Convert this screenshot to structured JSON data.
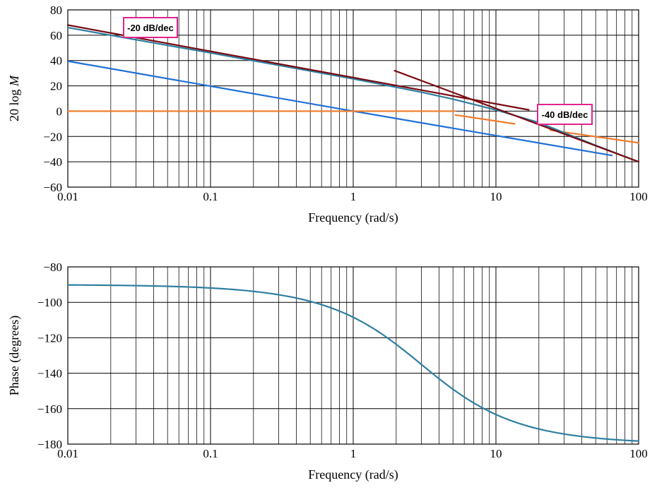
{
  "chart_data": [
    {
      "type": "line",
      "xscale": "log",
      "xlim": [
        0.01,
        100
      ],
      "ylim": [
        -60,
        80
      ],
      "xlabel": "Frequency (rad/s)",
      "ylabel": "20 log M",
      "xticks": [
        0.01,
        0.1,
        1,
        10,
        100
      ],
      "xtick_labels": [
        "0.01",
        "0.1",
        "1",
        "10",
        "100"
      ],
      "yticks": [
        -60,
        -40,
        -20,
        0,
        20,
        40,
        60,
        80
      ],
      "ytick_labels": [
        "−60",
        "−40",
        "−20",
        "0",
        "20",
        "40",
        "60",
        "80"
      ],
      "grid": true,
      "series": [
        {
          "color": "#1f6fd6",
          "x": [
            0.01,
            1,
            65
          ],
          "y": [
            39.5,
            0,
            -35
          ]
        },
        {
          "color": "#f07b2a",
          "x": [
            0.01,
            5.2
          ],
          "y": [
            0,
            0
          ]
        },
        {
          "color": "#f07b2a",
          "x": [
            5.2,
            13.5
          ],
          "y": [
            -3,
            -10
          ]
        },
        {
          "color": "#f07b2a",
          "x": [
            24,
            100
          ],
          "y": [
            -15,
            -25
          ]
        },
        {
          "color": "#2f7fa0",
          "x": [
            0.01,
            0.1,
            1,
            3,
            5,
            10,
            20,
            50,
            100
          ],
          "y": [
            66,
            46,
            25.5,
            15,
            9.5,
            1,
            -9,
            -27,
            -40
          ]
        },
        {
          "color": "#7a0a12",
          "x": [
            0.01,
            17
          ],
          "y": [
            68,
            1
          ]
        },
        {
          "color": "#7a0a12",
          "x": [
            1.95,
            100
          ],
          "y": [
            32,
            -40
          ]
        }
      ],
      "annotations": [
        {
          "text": "-20 dB/dec",
          "color": "#e0248a"
        },
        {
          "text": "-40 dB/dec",
          "color": "#e0248a"
        }
      ]
    },
    {
      "type": "line",
      "xscale": "log",
      "xlim": [
        0.01,
        100
      ],
      "ylim": [
        -180,
        -80
      ],
      "xlabel": "Frequency (rad/s)",
      "ylabel": "Phase (degrees)",
      "xticks": [
        0.01,
        0.1,
        1,
        10,
        100
      ],
      "xtick_labels": [
        "0.01",
        "0.1",
        "1",
        "10",
        "100"
      ],
      "yticks": [
        -180,
        -160,
        -140,
        -120,
        -100,
        -80
      ],
      "ytick_labels": [
        "−180",
        "−160",
        "−140",
        "−120",
        "−100",
        "−80"
      ],
      "grid": true,
      "series": [
        {
          "color": "#2f7fa0",
          "function": "phase = -90 - atan(w/3) in degrees",
          "x_range": [
            0.01,
            100
          ]
        }
      ]
    }
  ]
}
